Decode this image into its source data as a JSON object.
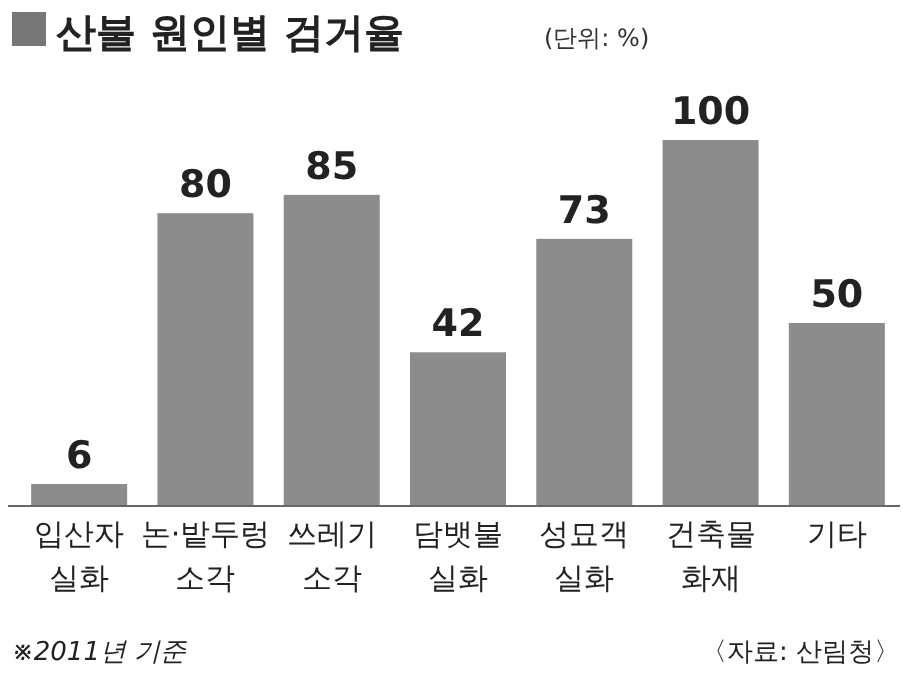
{
  "chart_data": {
    "type": "bar",
    "title": "산불 원인별 검거율",
    "subtitle": "(단위: %)",
    "categories": [
      "입산자 실화",
      "논·밭두렁 소각",
      "쓰레기 소각",
      "담뱃불 실화",
      "성묘객 실화",
      "건축물 화재",
      "기타"
    ],
    "values": [
      6,
      80,
      85,
      42,
      73,
      100,
      50
    ],
    "color": "#8c8c8c",
    "data_labels": true,
    "annotations": [
      "※2011년 기준",
      "〈자료: 산림청〉"
    ]
  }
}
